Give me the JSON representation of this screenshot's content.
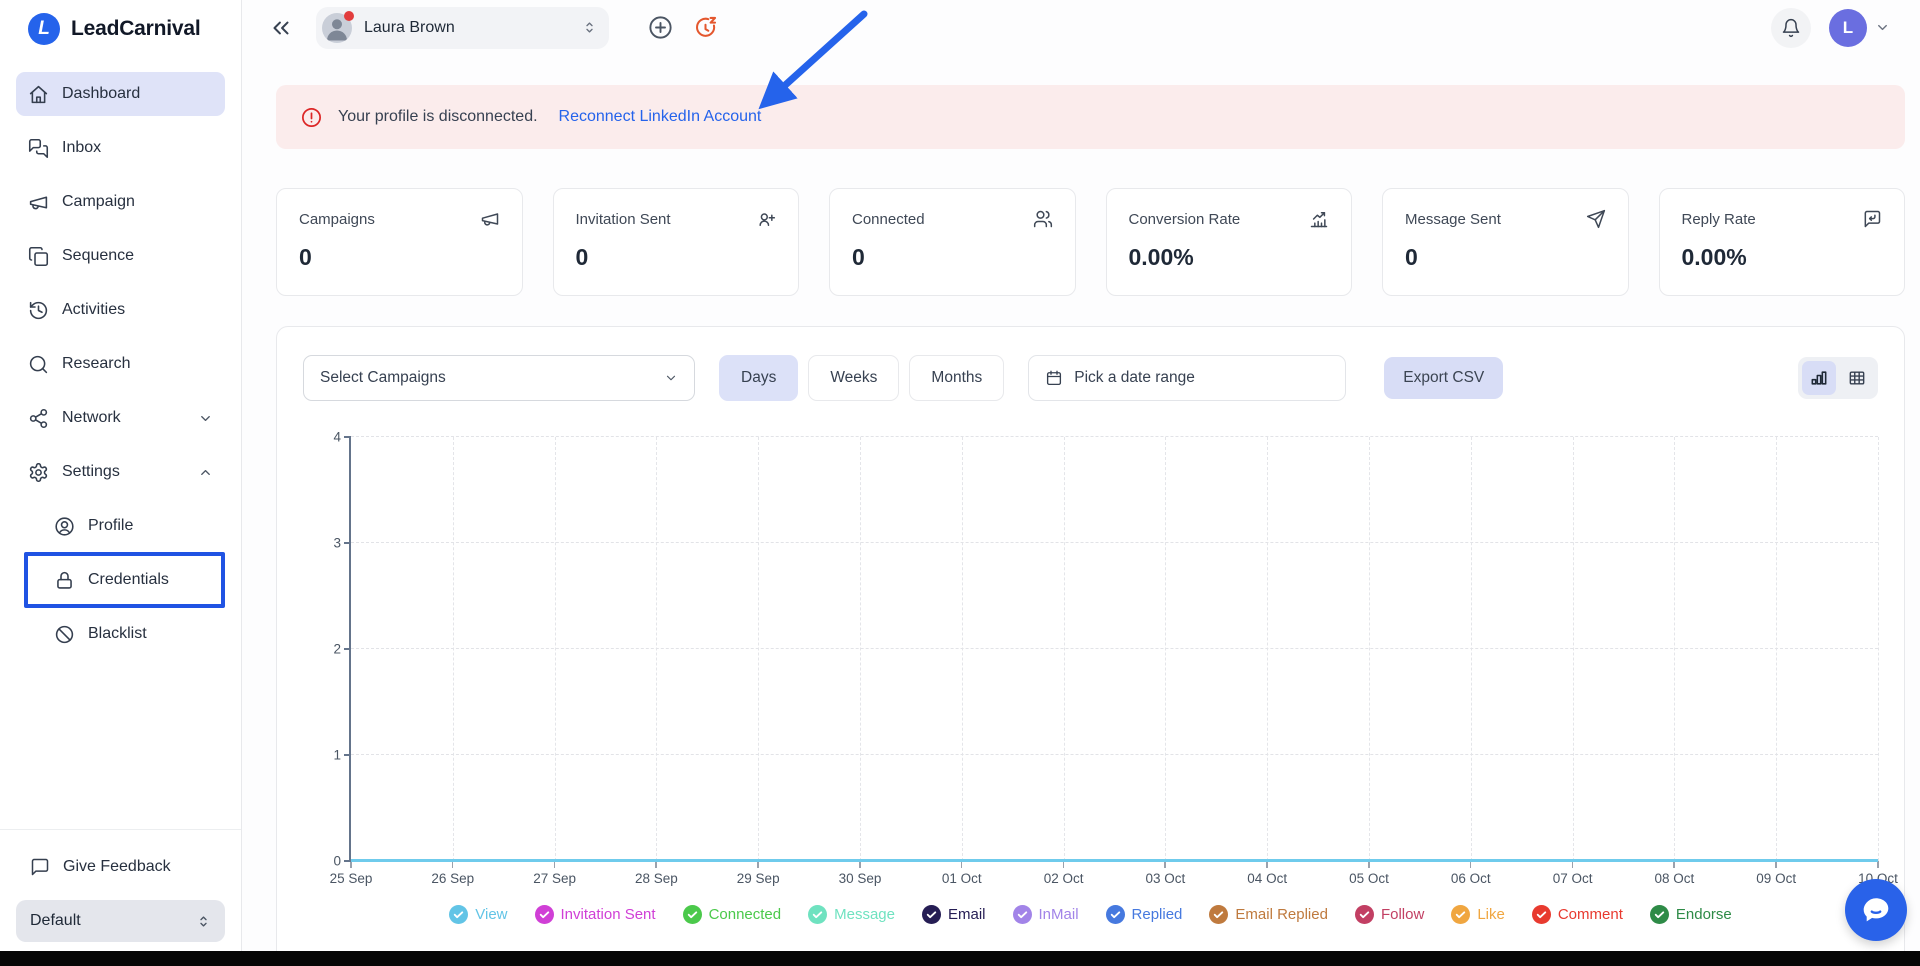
{
  "brand": {
    "name": "LeadCarnival",
    "logo_letter": "L"
  },
  "topbar": {
    "user_pill_name": "Laura Brown",
    "avatar_initial": "L"
  },
  "sidebar": {
    "items": [
      {
        "label": "Dashboard",
        "icon": "home",
        "active": true
      },
      {
        "label": "Inbox",
        "icon": "inbox-chat"
      },
      {
        "label": "Campaign",
        "icon": "megaphone"
      },
      {
        "label": "Sequence",
        "icon": "sequence-pages"
      },
      {
        "label": "Activities",
        "icon": "history"
      },
      {
        "label": "Research",
        "icon": "search"
      },
      {
        "label": "Network",
        "icon": "network-share",
        "chevron": "down"
      },
      {
        "label": "Settings",
        "icon": "gear",
        "chevron": "up",
        "expanded": true
      }
    ],
    "settings_children": [
      {
        "label": "Profile",
        "icon": "user-circle"
      },
      {
        "label": "Credentials",
        "icon": "lock",
        "highlighted": true
      },
      {
        "label": "Blacklist",
        "icon": "ban"
      }
    ],
    "footer": {
      "feedback_label": "Give Feedback",
      "workspace": "Default"
    }
  },
  "banner": {
    "message": "Your profile is disconnected.",
    "link_label": "Reconnect LinkedIn Account"
  },
  "stats": [
    {
      "label": "Campaigns",
      "value": "0",
      "icon": "megaphone"
    },
    {
      "label": "Invitation Sent",
      "value": "0",
      "icon": "user-plus"
    },
    {
      "label": "Connected",
      "value": "0",
      "icon": "users"
    },
    {
      "label": "Conversion Rate",
      "value": "0.00%",
      "icon": "chart-growth"
    },
    {
      "label": "Message Sent",
      "value": "0",
      "icon": "send"
    },
    {
      "label": "Reply Rate",
      "value": "0.00%",
      "icon": "reply"
    }
  ],
  "controls": {
    "campaign_select_placeholder": "Select Campaigns",
    "periods": [
      "Days",
      "Weeks",
      "Months"
    ],
    "active_period": "Days",
    "date_range_placeholder": "Pick a date range",
    "export_label": "Export CSV"
  },
  "chart_data": {
    "type": "line",
    "x": [
      "25 Sep",
      "26 Sep",
      "27 Sep",
      "28 Sep",
      "29 Sep",
      "30 Sep",
      "01 Oct",
      "02 Oct",
      "03 Oct",
      "04 Oct",
      "05 Oct",
      "06 Oct",
      "07 Oct",
      "08 Oct",
      "09 Oct",
      "10 Oct"
    ],
    "yticks": [
      0,
      1,
      2,
      3,
      4
    ],
    "ylim": [
      0,
      4
    ],
    "grid": true,
    "legend_position": "bottom",
    "zero_line_color": "#6fcbec",
    "series": [
      {
        "name": "View",
        "color": "#62c4e6",
        "values": [
          0,
          0,
          0,
          0,
          0,
          0,
          0,
          0,
          0,
          0,
          0,
          0,
          0,
          0,
          0,
          0
        ]
      },
      {
        "name": "Invitation Sent",
        "color": "#d03fd6",
        "values": [
          0,
          0,
          0,
          0,
          0,
          0,
          0,
          0,
          0,
          0,
          0,
          0,
          0,
          0,
          0,
          0
        ]
      },
      {
        "name": "Connected",
        "color": "#4bc94b",
        "values": [
          0,
          0,
          0,
          0,
          0,
          0,
          0,
          0,
          0,
          0,
          0,
          0,
          0,
          0,
          0,
          0
        ]
      },
      {
        "name": "Message",
        "color": "#6fe2c0",
        "values": [
          0,
          0,
          0,
          0,
          0,
          0,
          0,
          0,
          0,
          0,
          0,
          0,
          0,
          0,
          0,
          0
        ]
      },
      {
        "name": "Email",
        "color": "#251d54",
        "values": [
          0,
          0,
          0,
          0,
          0,
          0,
          0,
          0,
          0,
          0,
          0,
          0,
          0,
          0,
          0,
          0
        ]
      },
      {
        "name": "InMail",
        "color": "#a284e8",
        "values": [
          0,
          0,
          0,
          0,
          0,
          0,
          0,
          0,
          0,
          0,
          0,
          0,
          0,
          0,
          0,
          0
        ]
      },
      {
        "name": "Replied",
        "color": "#4679df",
        "values": [
          0,
          0,
          0,
          0,
          0,
          0,
          0,
          0,
          0,
          0,
          0,
          0,
          0,
          0,
          0,
          0
        ]
      },
      {
        "name": "Email Replied",
        "color": "#bf7a3e",
        "values": [
          0,
          0,
          0,
          0,
          0,
          0,
          0,
          0,
          0,
          0,
          0,
          0,
          0,
          0,
          0,
          0
        ]
      },
      {
        "name": "Follow",
        "color": "#c23f63",
        "values": [
          0,
          0,
          0,
          0,
          0,
          0,
          0,
          0,
          0,
          0,
          0,
          0,
          0,
          0,
          0,
          0
        ]
      },
      {
        "name": "Like",
        "color": "#f0a640",
        "values": [
          0,
          0,
          0,
          0,
          0,
          0,
          0,
          0,
          0,
          0,
          0,
          0,
          0,
          0,
          0,
          0
        ]
      },
      {
        "name": "Comment",
        "color": "#e83a2f",
        "values": [
          0,
          0,
          0,
          0,
          0,
          0,
          0,
          0,
          0,
          0,
          0,
          0,
          0,
          0,
          0,
          0
        ]
      },
      {
        "name": "Endorse",
        "color": "#2e8b47",
        "values": [
          0,
          0,
          0,
          0,
          0,
          0,
          0,
          0,
          0,
          0,
          0,
          0,
          0,
          0,
          0,
          0
        ]
      }
    ]
  },
  "colors": {
    "accent": "#2563eb",
    "sidebar_active_bg": "#dfe3f8",
    "banner_bg": "#fbecec",
    "alert_red": "#dc2626",
    "highlight_box": "#2053e3",
    "topbar_avatar_bg": "#6a6ee0",
    "chat_widget_bg": "#2962e9",
    "annotation_arrow": "#2563eb"
  }
}
